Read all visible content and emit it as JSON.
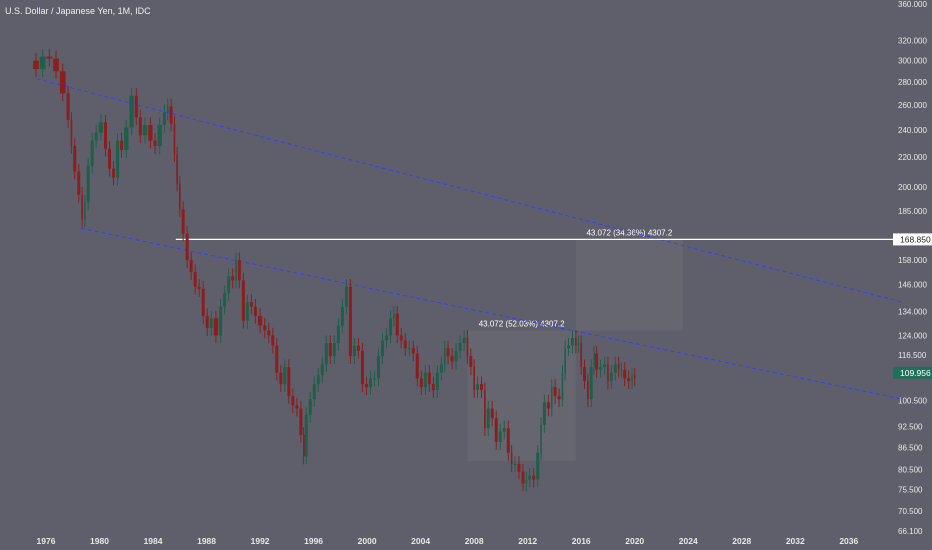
{
  "title": "U.S. Dollar / Japanese Yen, 1M, IDC",
  "colors": {
    "background": "#5f5f6b",
    "up": "#1f5f4a",
    "down": "#8b1e1e",
    "trendline": "#3a3aff",
    "hline": "#ffffff",
    "measure_box": "#6b6b74",
    "price_badge": "#1f6f5a"
  },
  "chart_data": {
    "type": "candlestick",
    "title": "U.S. Dollar / Japanese Yen, 1M, IDC",
    "x_ticks": [
      "1976",
      "1980",
      "1984",
      "1988",
      "1992",
      "1996",
      "2000",
      "2004",
      "2008",
      "2012",
      "2016",
      "2020",
      "2024",
      "2028",
      "2032",
      "2036"
    ],
    "y_scale": "log",
    "y_ticks": [
      "360.000",
      "320.000",
      "300.000",
      "280.000",
      "260.000",
      "240.000",
      "220.000",
      "200.000",
      "185.000",
      "168.850",
      "158.000",
      "146.000",
      "134.000",
      "124.000",
      "116.500",
      "109.956",
      "100.500",
      "92.500",
      "86.500",
      "80.500",
      "75.500",
      "70.500",
      "66.100"
    ],
    "xlim": [
      1975.0,
      2040.0
    ],
    "ylim": [
      66.1,
      360.0
    ],
    "price_path": [
      [
        1975.0,
        300
      ],
      [
        1975.5,
        292
      ],
      [
        1976.0,
        304
      ],
      [
        1976.5,
        302
      ],
      [
        1977.0,
        290
      ],
      [
        1977.5,
        270
      ],
      [
        1977.8,
        248
      ],
      [
        1978.0,
        228
      ],
      [
        1978.3,
        210
      ],
      [
        1978.6,
        195
      ],
      [
        1978.8,
        180
      ],
      [
        1979.0,
        190
      ],
      [
        1979.3,
        214
      ],
      [
        1979.6,
        232
      ],
      [
        1979.9,
        238
      ],
      [
        1980.3,
        246
      ],
      [
        1980.6,
        226
      ],
      [
        1980.9,
        212
      ],
      [
        1981.2,
        206
      ],
      [
        1981.5,
        232
      ],
      [
        1981.8,
        225
      ],
      [
        1982.2,
        242
      ],
      [
        1982.6,
        268
      ],
      [
        1982.9,
        250
      ],
      [
        1983.2,
        236
      ],
      [
        1983.6,
        244
      ],
      [
        1984.0,
        232
      ],
      [
        1984.3,
        228
      ],
      [
        1984.7,
        244
      ],
      [
        1985.0,
        254
      ],
      [
        1985.2,
        259
      ],
      [
        1985.5,
        245
      ],
      [
        1985.7,
        222
      ],
      [
        1985.9,
        202
      ],
      [
        1986.1,
        186
      ],
      [
        1986.4,
        172
      ],
      [
        1986.7,
        158
      ],
      [
        1987.0,
        152
      ],
      [
        1987.3,
        145
      ],
      [
        1987.6,
        144
      ],
      [
        1987.9,
        132
      ],
      [
        1988.2,
        127
      ],
      [
        1988.5,
        131
      ],
      [
        1988.9,
        124
      ],
      [
        1989.2,
        136
      ],
      [
        1989.5,
        142
      ],
      [
        1989.8,
        150
      ],
      [
        1990.1,
        148
      ],
      [
        1990.3,
        158
      ],
      [
        1990.6,
        148
      ],
      [
        1990.9,
        130
      ],
      [
        1991.2,
        138
      ],
      [
        1991.5,
        136
      ],
      [
        1991.8,
        132
      ],
      [
        1992.2,
        128
      ],
      [
        1992.5,
        126
      ],
      [
        1992.8,
        124
      ],
      [
        1993.1,
        120
      ],
      [
        1993.4,
        110
      ],
      [
        1993.7,
        106
      ],
      [
        1994.0,
        112
      ],
      [
        1994.3,
        102
      ],
      [
        1994.6,
        99
      ],
      [
        1994.9,
        98
      ],
      [
        1995.2,
        90
      ],
      [
        1995.3,
        84
      ],
      [
        1995.6,
        96
      ],
      [
        1995.9,
        101
      ],
      [
        1996.2,
        106
      ],
      [
        1996.5,
        109
      ],
      [
        1996.8,
        113
      ],
      [
        1997.1,
        121
      ],
      [
        1997.4,
        116
      ],
      [
        1997.7,
        121
      ],
      [
        1998.0,
        128
      ],
      [
        1998.3,
        136
      ],
      [
        1998.6,
        145
      ],
      [
        1998.9,
        116
      ],
      [
        1999.2,
        120
      ],
      [
        1999.5,
        118
      ],
      [
        1999.8,
        106
      ],
      [
        2000.1,
        105
      ],
      [
        2000.4,
        108
      ],
      [
        2000.7,
        108
      ],
      [
        2001.0,
        116
      ],
      [
        2001.3,
        122
      ],
      [
        2001.6,
        124
      ],
      [
        2001.9,
        131
      ],
      [
        2002.1,
        133
      ],
      [
        2002.4,
        124
      ],
      [
        2002.7,
        122
      ],
      [
        2003.0,
        119
      ],
      [
        2003.3,
        119
      ],
      [
        2003.6,
        117
      ],
      [
        2003.9,
        108
      ],
      [
        2004.2,
        105
      ],
      [
        2004.5,
        110
      ],
      [
        2004.8,
        106
      ],
      [
        2005.1,
        104
      ],
      [
        2005.4,
        110
      ],
      [
        2005.7,
        113
      ],
      [
        2005.9,
        119
      ],
      [
        2006.2,
        116
      ],
      [
        2006.5,
        114
      ],
      [
        2006.8,
        118
      ],
      [
        2007.1,
        121
      ],
      [
        2007.4,
        123
      ],
      [
        2007.6,
        116
      ],
      [
        2007.9,
        112
      ],
      [
        2008.1,
        104
      ],
      [
        2008.4,
        106
      ],
      [
        2008.7,
        104
      ],
      [
        2008.9,
        92
      ],
      [
        2009.2,
        98
      ],
      [
        2009.5,
        95
      ],
      [
        2009.8,
        88
      ],
      [
        2010.1,
        91
      ],
      [
        2010.4,
        92
      ],
      [
        2010.7,
        85
      ],
      [
        2010.9,
        82
      ],
      [
        2011.2,
        82
      ],
      [
        2011.5,
        80
      ],
      [
        2011.8,
        77
      ],
      [
        2012.0,
        78
      ],
      [
        2012.3,
        79
      ],
      [
        2012.6,
        78
      ],
      [
        2012.9,
        85
      ],
      [
        2013.1,
        93
      ],
      [
        2013.4,
        100
      ],
      [
        2013.7,
        98
      ],
      [
        2013.9,
        105
      ],
      [
        2014.2,
        102
      ],
      [
        2014.5,
        101
      ],
      [
        2014.7,
        110
      ],
      [
        2014.9,
        119
      ],
      [
        2015.2,
        120
      ],
      [
        2015.5,
        123
      ],
      [
        2015.7,
        120
      ],
      [
        2015.9,
        121
      ],
      [
        2016.1,
        112
      ],
      [
        2016.4,
        107
      ],
      [
        2016.6,
        101
      ],
      [
        2016.9,
        112
      ],
      [
        2017.0,
        117
      ],
      [
        2017.3,
        111
      ],
      [
        2017.6,
        112
      ],
      [
        2017.9,
        113
      ],
      [
        2018.1,
        107
      ],
      [
        2018.4,
        110
      ],
      [
        2018.7,
        113
      ],
      [
        2018.9,
        111
      ],
      [
        2019.1,
        111
      ],
      [
        2019.4,
        108
      ],
      [
        2019.7,
        107
      ],
      [
        2019.9,
        109
      ],
      [
        2020.1,
        108
      ]
    ],
    "trendlines": [
      {
        "x1": 1975.3,
        "y1": 283,
        "x2": 2040.0,
        "y2": 138
      },
      {
        "x1": 1978.6,
        "y1": 175,
        "x2": 2040.0,
        "y2": 101
      }
    ],
    "horizontal_line": {
      "y": 168.85,
      "label": "168.850",
      "x_start": 1985.7
    },
    "current_price": {
      "y": 109.956,
      "label": "109.956"
    },
    "measurements": [
      {
        "label": "43.072 (52.03%) 4307.2",
        "x1": 2007.5,
        "x2": 2015.6,
        "y_low": 82.8,
        "y_high": 125.9
      },
      {
        "label": "43.072 (34.36%) 4307.2",
        "x1": 2015.6,
        "x2": 2023.6,
        "y_low": 125.9,
        "y_high": 168.85
      }
    ]
  }
}
